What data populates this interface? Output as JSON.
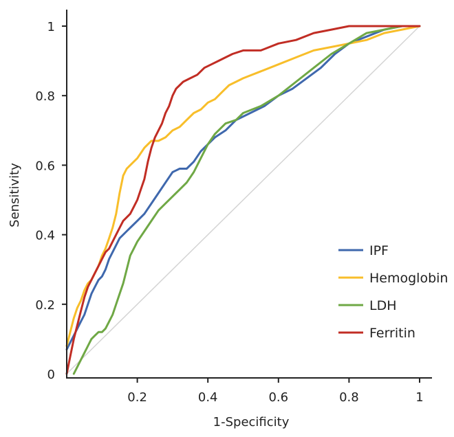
{
  "chart_data": {
    "type": "line",
    "title": "",
    "xlabel": "1-Specificity",
    "ylabel": "Sensitivity",
    "xlim": [
      0,
      1
    ],
    "ylim": [
      0,
      1
    ],
    "x_ticks": [
      {
        "value": 0.2,
        "label": "0.2"
      },
      {
        "value": 0.4,
        "label": "0.4"
      },
      {
        "value": 0.6,
        "label": "0.6"
      },
      {
        "value": 0.8,
        "label": "0.8"
      },
      {
        "value": 1,
        "label": "1"
      }
    ],
    "y_ticks": [
      {
        "value": 0,
        "label": "0"
      },
      {
        "value": 0.2,
        "label": "0.2"
      },
      {
        "value": 0.4,
        "label": "0.4"
      },
      {
        "value": 0.6,
        "label": "0.6"
      },
      {
        "value": 0.8,
        "label": "0.8"
      },
      {
        "value": 1,
        "label": "1"
      }
    ],
    "grid": false,
    "legend_position": "bottom-right",
    "reference_line": {
      "x": [
        0,
        1
      ],
      "y": [
        0,
        1
      ],
      "color": "#d4d4d4"
    },
    "series": [
      {
        "name": "IPF",
        "color": "#3f68ad",
        "x": [
          0.0,
          0.01,
          0.02,
          0.03,
          0.04,
          0.05,
          0.06,
          0.07,
          0.08,
          0.09,
          0.1,
          0.11,
          0.12,
          0.13,
          0.14,
          0.15,
          0.16,
          0.17,
          0.18,
          0.2,
          0.22,
          0.24,
          0.26,
          0.28,
          0.3,
          0.32,
          0.34,
          0.36,
          0.38,
          0.4,
          0.42,
          0.45,
          0.48,
          0.52,
          0.56,
          0.6,
          0.64,
          0.68,
          0.72,
          0.76,
          0.8,
          0.85,
          0.9,
          0.95,
          1.0
        ],
        "y": [
          0.07,
          0.09,
          0.11,
          0.13,
          0.15,
          0.17,
          0.2,
          0.23,
          0.25,
          0.27,
          0.28,
          0.3,
          0.33,
          0.35,
          0.37,
          0.39,
          0.4,
          0.41,
          0.42,
          0.44,
          0.46,
          0.49,
          0.52,
          0.55,
          0.58,
          0.59,
          0.59,
          0.61,
          0.64,
          0.66,
          0.68,
          0.7,
          0.73,
          0.75,
          0.77,
          0.8,
          0.82,
          0.85,
          0.88,
          0.92,
          0.95,
          0.97,
          0.99,
          1.0,
          1.0
        ]
      },
      {
        "name": "Hemoglobin",
        "color": "#f8be2a",
        "x": [
          0.0,
          0.01,
          0.02,
          0.03,
          0.04,
          0.05,
          0.06,
          0.07,
          0.08,
          0.09,
          0.1,
          0.11,
          0.12,
          0.13,
          0.14,
          0.15,
          0.16,
          0.17,
          0.18,
          0.19,
          0.2,
          0.22,
          0.24,
          0.26,
          0.28,
          0.3,
          0.32,
          0.34,
          0.36,
          0.38,
          0.4,
          0.42,
          0.44,
          0.46,
          0.48,
          0.5,
          0.55,
          0.6,
          0.65,
          0.7,
          0.75,
          0.8,
          0.85,
          0.9,
          0.95,
          1.0
        ],
        "y": [
          0.08,
          0.12,
          0.16,
          0.19,
          0.21,
          0.24,
          0.26,
          0.27,
          0.29,
          0.31,
          0.34,
          0.36,
          0.39,
          0.42,
          0.46,
          0.52,
          0.57,
          0.59,
          0.6,
          0.61,
          0.62,
          0.65,
          0.67,
          0.67,
          0.68,
          0.7,
          0.71,
          0.73,
          0.75,
          0.76,
          0.78,
          0.79,
          0.81,
          0.83,
          0.84,
          0.85,
          0.87,
          0.89,
          0.91,
          0.93,
          0.94,
          0.95,
          0.96,
          0.98,
          0.99,
          1.0
        ]
      },
      {
        "name": "LDH",
        "color": "#6fa845",
        "x": [
          0.02,
          0.03,
          0.04,
          0.05,
          0.06,
          0.07,
          0.08,
          0.09,
          0.1,
          0.11,
          0.12,
          0.13,
          0.14,
          0.15,
          0.16,
          0.17,
          0.18,
          0.19,
          0.2,
          0.22,
          0.24,
          0.26,
          0.28,
          0.3,
          0.32,
          0.34,
          0.36,
          0.38,
          0.4,
          0.42,
          0.45,
          0.48,
          0.5,
          0.55,
          0.6,
          0.65,
          0.7,
          0.75,
          0.8,
          0.85,
          0.9,
          0.95,
          1.0
        ],
        "y": [
          0.0,
          0.02,
          0.04,
          0.06,
          0.08,
          0.1,
          0.11,
          0.12,
          0.12,
          0.13,
          0.15,
          0.17,
          0.2,
          0.23,
          0.26,
          0.3,
          0.34,
          0.36,
          0.38,
          0.41,
          0.44,
          0.47,
          0.49,
          0.51,
          0.53,
          0.55,
          0.58,
          0.62,
          0.66,
          0.69,
          0.72,
          0.73,
          0.75,
          0.77,
          0.8,
          0.84,
          0.88,
          0.92,
          0.95,
          0.98,
          0.99,
          1.0,
          1.0
        ]
      },
      {
        "name": "Ferritin",
        "color": "#c12d24",
        "x": [
          0.0,
          0.01,
          0.02,
          0.03,
          0.04,
          0.05,
          0.06,
          0.07,
          0.08,
          0.09,
          0.1,
          0.11,
          0.12,
          0.13,
          0.14,
          0.15,
          0.16,
          0.17,
          0.18,
          0.19,
          0.2,
          0.21,
          0.22,
          0.23,
          0.24,
          0.25,
          0.26,
          0.27,
          0.28,
          0.29,
          0.3,
          0.31,
          0.32,
          0.33,
          0.35,
          0.37,
          0.39,
          0.41,
          0.43,
          0.45,
          0.47,
          0.5,
          0.55,
          0.6,
          0.65,
          0.7,
          0.75,
          0.8,
          0.85,
          0.9,
          0.95,
          1.0
        ],
        "y": [
          0.0,
          0.05,
          0.1,
          0.14,
          0.18,
          0.22,
          0.25,
          0.27,
          0.29,
          0.31,
          0.33,
          0.35,
          0.36,
          0.38,
          0.4,
          0.42,
          0.44,
          0.45,
          0.46,
          0.48,
          0.5,
          0.53,
          0.56,
          0.61,
          0.65,
          0.68,
          0.7,
          0.72,
          0.75,
          0.77,
          0.8,
          0.82,
          0.83,
          0.84,
          0.85,
          0.86,
          0.88,
          0.89,
          0.9,
          0.91,
          0.92,
          0.93,
          0.93,
          0.95,
          0.96,
          0.98,
          0.99,
          1.0,
          1.0,
          1.0,
          1.0,
          1.0
        ]
      }
    ]
  }
}
